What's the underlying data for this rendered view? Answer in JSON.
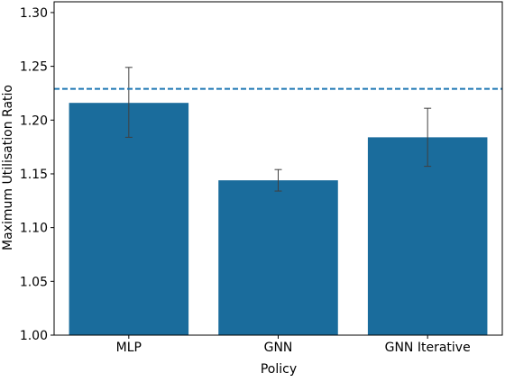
{
  "chart_data": {
    "type": "bar",
    "title": "",
    "xlabel": "Policy",
    "ylabel": "Maximum Utilisation Ratio",
    "categories": [
      "MLP",
      "GNN",
      "GNN Iterative"
    ],
    "values": [
      1.216,
      1.144,
      1.184
    ],
    "error_low": [
      1.184,
      1.134,
      1.157
    ],
    "error_high": [
      1.249,
      1.154,
      1.211
    ],
    "ylim": [
      1.0,
      1.31
    ],
    "yticks": [
      "1.00",
      "1.05",
      "1.10",
      "1.15",
      "1.20",
      "1.25",
      "1.30"
    ],
    "reference_line": {
      "value": 1.229,
      "style": "dashed"
    },
    "grid": false,
    "colors": {
      "bar": "#1a6c9c",
      "error_bar": "#404040",
      "reference_line": "#1f77b4",
      "axis": "#000000"
    }
  }
}
